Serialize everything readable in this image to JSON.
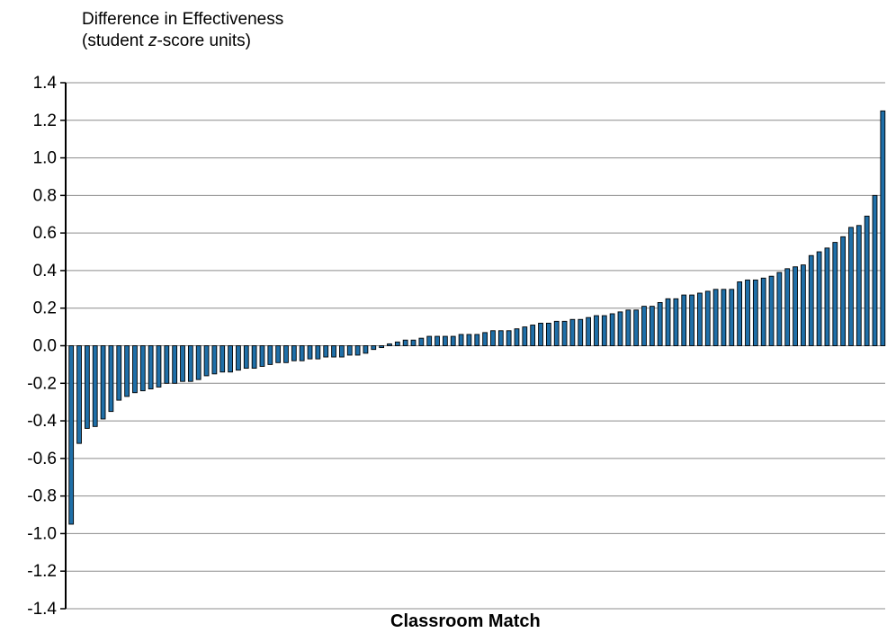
{
  "chart_data": {
    "type": "bar",
    "ylabel_line1": "Difference in Effectiveness",
    "ylabel_line2_pre": "(student ",
    "ylabel_line2_em": "z",
    "ylabel_line2_post": "-score units)",
    "xlabel": "Classroom Match",
    "ylim": [
      -1.4,
      1.4
    ],
    "yticks": [
      "1.4",
      "1.2",
      "1.0",
      "0.8",
      "0.6",
      "0.4",
      "0.2",
      "0.0",
      "-0.2",
      "-0.4",
      "-0.6",
      "-0.8",
      "-1.0",
      "-1.2",
      "-1.4"
    ],
    "grid": true,
    "bar_color": "#1f6fa8",
    "values": [
      -0.95,
      -0.52,
      -0.44,
      -0.43,
      -0.39,
      -0.35,
      -0.29,
      -0.27,
      -0.25,
      -0.24,
      -0.23,
      -0.22,
      -0.2,
      -0.2,
      -0.19,
      -0.19,
      -0.18,
      -0.16,
      -0.15,
      -0.14,
      -0.14,
      -0.13,
      -0.12,
      -0.12,
      -0.11,
      -0.1,
      -0.09,
      -0.09,
      -0.08,
      -0.08,
      -0.07,
      -0.07,
      -0.06,
      -0.06,
      -0.06,
      -0.05,
      -0.05,
      -0.04,
      -0.02,
      -0.01,
      0.01,
      0.02,
      0.03,
      0.03,
      0.04,
      0.05,
      0.05,
      0.05,
      0.05,
      0.06,
      0.06,
      0.06,
      0.07,
      0.08,
      0.08,
      0.08,
      0.09,
      0.1,
      0.11,
      0.12,
      0.12,
      0.13,
      0.13,
      0.14,
      0.14,
      0.15,
      0.16,
      0.16,
      0.17,
      0.18,
      0.19,
      0.19,
      0.21,
      0.21,
      0.23,
      0.25,
      0.25,
      0.27,
      0.27,
      0.28,
      0.29,
      0.3,
      0.3,
      0.3,
      0.34,
      0.35,
      0.35,
      0.36,
      0.37,
      0.39,
      0.41,
      0.42,
      0.43,
      0.48,
      0.5,
      0.52,
      0.55,
      0.58,
      0.63,
      0.64,
      0.69,
      0.8,
      1.25
    ]
  }
}
